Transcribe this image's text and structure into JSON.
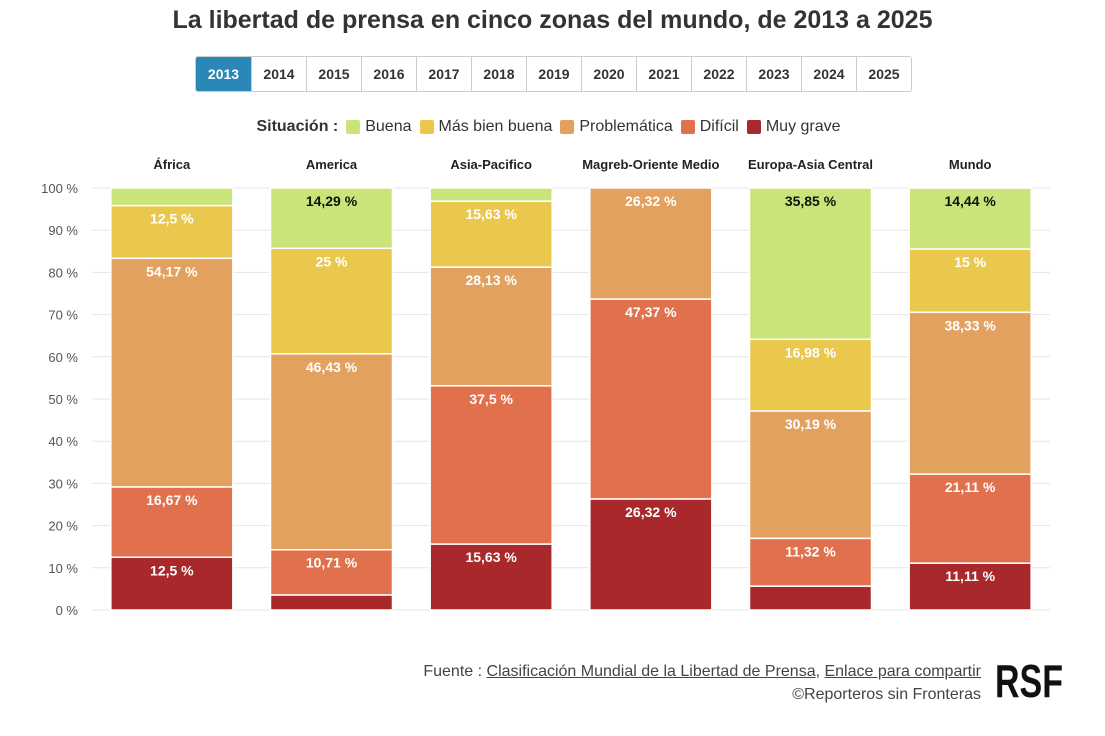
{
  "title": "La libertad de prensa en cinco zonas del mundo, de 2013 a 2025",
  "years": [
    "2013",
    "2014",
    "2015",
    "2016",
    "2017",
    "2018",
    "2019",
    "2020",
    "2021",
    "2022",
    "2023",
    "2024",
    "2025"
  ],
  "selected_year": "2013",
  "legend": {
    "title": "Situación :",
    "items": [
      {
        "label": "Buena",
        "color": "#c9e57a"
      },
      {
        "label": "Más bien buena",
        "color": "#eac84e"
      },
      {
        "label": "Problemática",
        "color": "#e3a15f"
      },
      {
        "label": "Difícil",
        "color": "#e0714c"
      },
      {
        "label": "Muy grave",
        "color": "#a8282c"
      }
    ]
  },
  "chart_data": {
    "type": "bar",
    "stacked": true,
    "title": "La libertad de prensa en cinco zonas del mundo, de 2013 a 2025",
    "categories": [
      "África",
      "America",
      "Asia-Pacifico",
      "Magreb-Oriente Medio",
      "Europa-Asia Central",
      "Mundo"
    ],
    "ylim": [
      0,
      100
    ],
    "yticks": [
      0,
      10,
      20,
      30,
      40,
      50,
      60,
      70,
      80,
      90,
      100
    ],
    "ytick_labels": [
      "0 %",
      "10 %",
      "20 %",
      "30 %",
      "40 %",
      "50 %",
      "60 %",
      "70 %",
      "80 %",
      "90 %",
      "100 %"
    ],
    "series": [
      {
        "name": "Muy grave",
        "color": "#a8282c",
        "values": [
          12.5,
          3.57,
          15.63,
          26.32,
          5.66,
          11.11
        ],
        "labels": [
          "12,5 %",
          "",
          "15,63 %",
          "26,32 %",
          "",
          "11,11 %"
        ]
      },
      {
        "name": "Difícil",
        "color": "#e0714c",
        "values": [
          16.67,
          10.71,
          37.5,
          47.37,
          11.32,
          21.11
        ],
        "labels": [
          "16,67 %",
          "10,71 %",
          "37,5 %",
          "47,37 %",
          "11,32 %",
          "21,11 %"
        ]
      },
      {
        "name": "Problemática",
        "color": "#e3a15f",
        "values": [
          54.17,
          46.43,
          28.13,
          26.32,
          30.19,
          38.33
        ],
        "labels": [
          "54,17 %",
          "46,43 %",
          "28,13 %",
          "26,32 %",
          "30,19 %",
          "38,33 %"
        ]
      },
      {
        "name": "Más bien buena",
        "color": "#eac84e",
        "values": [
          12.5,
          25,
          15.63,
          0,
          16.98,
          15
        ],
        "labels": [
          "12,5 %",
          "25 %",
          "15,63 %",
          "",
          "16,98 %",
          "15 %"
        ]
      },
      {
        "name": "Buena",
        "color": "#c9e57a",
        "values": [
          4.17,
          14.29,
          3.13,
          0,
          35.85,
          14.44
        ],
        "labels": [
          "",
          "14,29 %",
          "",
          "",
          "35,85 %",
          "14,44 %"
        ]
      }
    ]
  },
  "source": {
    "prefix": "Fuente : ",
    "link1": "Clasificación Mundial de la Libertad de Prensa",
    "separator": ", ",
    "link2": "Enlace para compartir",
    "copyright": "©Reporteros sin Fronteras"
  },
  "logo_text": "RSF",
  "colors": {
    "active_year": "#2b87b8",
    "label_dark": "#111111",
    "label_light": "#ffffff"
  }
}
